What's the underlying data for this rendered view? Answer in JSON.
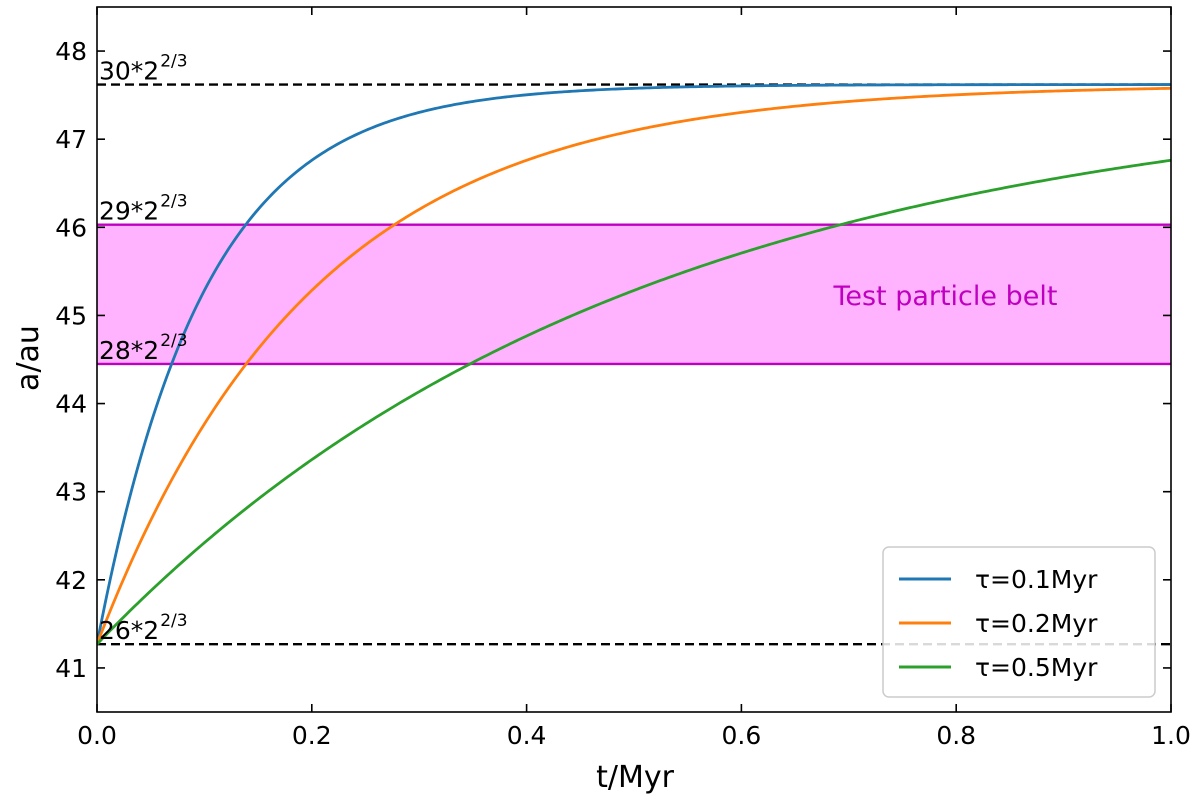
{
  "chart_data": {
    "type": "line",
    "xlabel": "t/Myr",
    "ylabel": "a/au",
    "xlim": [
      0.0,
      1.0
    ],
    "ylim": [
      40.5,
      48.5
    ],
    "xticks": [
      "0.0",
      "0.2",
      "0.4",
      "0.6",
      "0.8",
      "1.0"
    ],
    "yticks": [
      "41",
      "42",
      "43",
      "44",
      "45",
      "46",
      "47",
      "48"
    ],
    "grid": false,
    "legend_position": "lower-right",
    "model": "a(t) = a_f - (a_f - a_0) * exp(-t/tau)",
    "a0": 41.27,
    "af": 47.62,
    "series": [
      {
        "name": "τ=0.1Myr",
        "tau": 0.1,
        "color": "#1f77b4",
        "x": [
          0.0,
          0.1,
          0.2,
          0.3,
          0.4,
          0.5,
          0.6,
          0.7,
          0.8,
          0.9,
          1.0
        ],
        "y": [
          41.27,
          45.28,
          46.76,
          47.3,
          47.5,
          47.58,
          47.6,
          47.61,
          47.62,
          47.62,
          47.62
        ]
      },
      {
        "name": "τ=0.2Myr",
        "tau": 0.2,
        "color": "#ff7f0e",
        "x": [
          0.0,
          0.1,
          0.2,
          0.3,
          0.4,
          0.5,
          0.6,
          0.7,
          0.8,
          0.9,
          1.0
        ],
        "y": [
          41.27,
          43.77,
          45.28,
          46.2,
          46.76,
          47.1,
          47.3,
          47.43,
          47.5,
          47.55,
          47.58
        ]
      },
      {
        "name": "τ=0.5Myr",
        "tau": 0.5,
        "color": "#2ca02c",
        "x": [
          0.0,
          0.1,
          0.2,
          0.3,
          0.4,
          0.5,
          0.6,
          0.7,
          0.8,
          0.9,
          1.0
        ],
        "y": [
          41.27,
          42.42,
          43.36,
          44.14,
          44.77,
          45.28,
          45.71,
          46.05,
          46.34,
          46.57,
          46.76
        ]
      }
    ],
    "reference_lines": [
      {
        "label": "30*2",
        "sup": "2/3",
        "y": 47.62,
        "style": "dashed",
        "color": "#000000"
      },
      {
        "label": "26*2",
        "sup": "2/3",
        "y": 41.27,
        "style": "dashed",
        "color": "#000000"
      },
      {
        "label": "29*2",
        "sup": "2/3",
        "y": 46.03,
        "style": "solid",
        "color": "#c000c0"
      },
      {
        "label": "28*2",
        "sup": "2/3",
        "y": 44.45,
        "style": "solid",
        "color": "#c000c0"
      }
    ],
    "band": {
      "label": "Test particle belt",
      "y_min": 44.45,
      "y_max": 46.03,
      "fill": "#ffb3ff",
      "edge": "#c000c0",
      "text_color": "#c000c0",
      "label_x": 0.79,
      "label_y": 45.12
    }
  }
}
